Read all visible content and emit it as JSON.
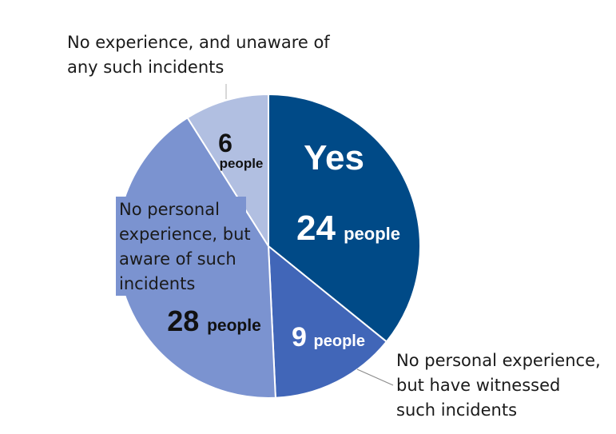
{
  "chart_data": {
    "type": "pie",
    "unit": "people",
    "slices": [
      {
        "label": "Yes",
        "value": 24,
        "color": "#004a87"
      },
      {
        "label": "No personal experience, but have witnessed such incidents",
        "value": 9,
        "color": "#4166b8"
      },
      {
        "label": "No personal experience, but aware of such incidents",
        "value": 28,
        "color": "#7b93d0"
      },
      {
        "label": "No experience, and unaware of any such incidents",
        "value": 6,
        "color": "#b1bfe1"
      }
    ],
    "external_labels": [
      {
        "text": "No experience, and unaware of\nany such incidents"
      },
      {
        "text": "No personal\nexperience, but\naware of such\nincidents"
      },
      {
        "text": "No personal experience,\nbut have witnessed\nsuch incidents"
      }
    ],
    "inner_labels": {
      "yes": "Yes"
    }
  }
}
